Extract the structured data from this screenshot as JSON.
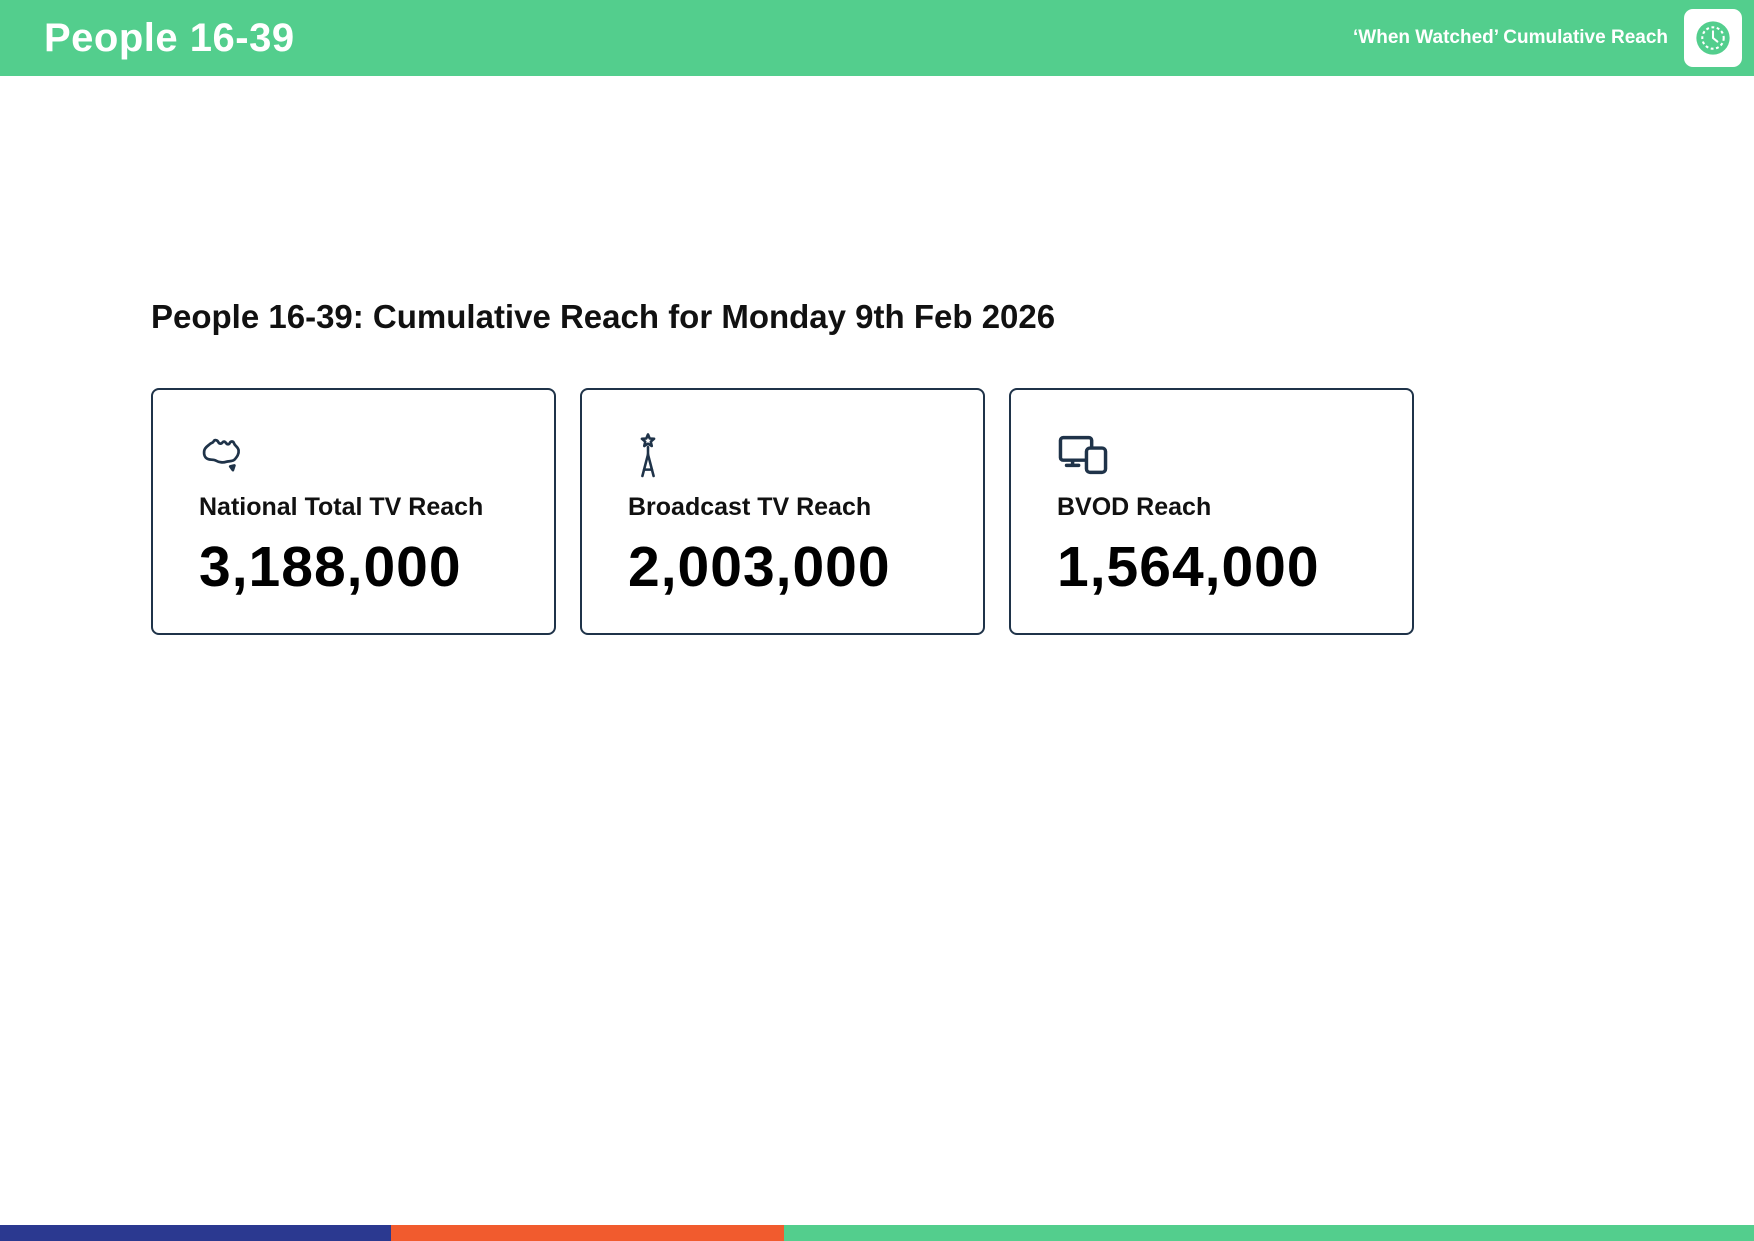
{
  "header": {
    "title": "People 16-39",
    "right_label": "‘When Watched’ Cumulative Reach",
    "bg_color": "#53CE8D"
  },
  "main": {
    "title": "People 16-39: Cumulative Reach for Monday 9th Feb 2026",
    "card_border_color": "#1F3349",
    "cards": [
      {
        "icon": "australia-map-icon",
        "label": "National Total TV Reach",
        "value": "3,188,000"
      },
      {
        "icon": "broadcast-tower-icon",
        "label": "Broadcast TV Reach",
        "value": "2,003,000"
      },
      {
        "icon": "screens-devices-icon",
        "label": "BVOD Reach",
        "value": "1,564,000"
      }
    ]
  },
  "footer": {
    "segments": [
      {
        "name": "blue",
        "color": "#2B3990",
        "width_pct": 22.3
      },
      {
        "name": "orange",
        "color": "#F15B2E",
        "width_pct": 22.4
      },
      {
        "name": "green",
        "color": "#53CE8D",
        "width_pct": 55.3
      }
    ]
  }
}
